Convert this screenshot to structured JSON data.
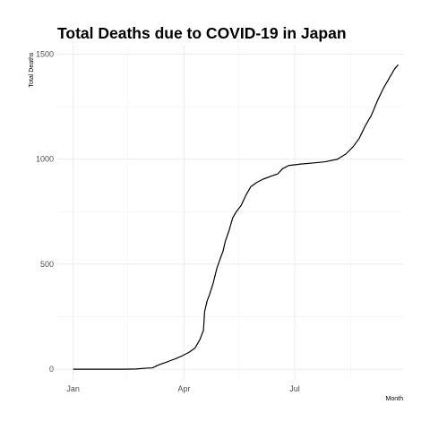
{
  "chart_data": {
    "type": "line",
    "title": "Total Deaths due to COVID-19 in Japan",
    "xlabel": "Month",
    "ylabel": "Total Deaths",
    "x_ticks": [
      "Jan",
      "Apr",
      "Jul"
    ],
    "y_ticks": [
      0,
      500,
      1000,
      1500
    ],
    "ylim": [
      -55,
      1545
    ],
    "xlim": [
      "2019-12-19",
      "2020-09-28"
    ],
    "grid": true,
    "series": [
      {
        "line_color": "#000000",
        "points": [
          [
            "2020-01-01",
            0
          ],
          [
            "2020-02-13",
            0
          ],
          [
            "2020-02-22",
            1
          ],
          [
            "2020-03-01",
            5
          ],
          [
            "2020-03-06",
            6
          ],
          [
            "2020-03-11",
            20
          ],
          [
            "2020-03-16",
            30
          ],
          [
            "2020-03-21",
            41
          ],
          [
            "2020-03-26",
            52
          ],
          [
            "2020-03-31",
            65
          ],
          [
            "2020-04-05",
            80
          ],
          [
            "2020-04-10",
            100
          ],
          [
            "2020-04-14",
            140
          ],
          [
            "2020-04-17",
            185
          ],
          [
            "2020-04-18",
            275
          ],
          [
            "2020-04-20",
            325
          ],
          [
            "2020-04-22",
            355
          ],
          [
            "2020-04-25",
            410
          ],
          [
            "2020-04-28",
            480
          ],
          [
            "2020-05-01",
            530
          ],
          [
            "2020-05-03",
            560
          ],
          [
            "2020-05-05",
            610
          ],
          [
            "2020-05-08",
            660
          ],
          [
            "2020-05-11",
            720
          ],
          [
            "2020-05-14",
            750
          ],
          [
            "2020-05-18",
            780
          ],
          [
            "2020-05-22",
            830
          ],
          [
            "2020-05-26",
            870
          ],
          [
            "2020-05-31",
            890
          ],
          [
            "2020-06-05",
            905
          ],
          [
            "2020-06-12",
            920
          ],
          [
            "2020-06-17",
            930
          ],
          [
            "2020-06-21",
            955
          ],
          [
            "2020-06-26",
            970
          ],
          [
            "2020-07-06",
            977
          ],
          [
            "2020-07-16",
            982
          ],
          [
            "2020-07-26",
            988
          ],
          [
            "2020-08-05",
            1000
          ],
          [
            "2020-08-12",
            1025
          ],
          [
            "2020-08-18",
            1060
          ],
          [
            "2020-08-23",
            1100
          ],
          [
            "2020-08-28",
            1160
          ],
          [
            "2020-09-02",
            1210
          ],
          [
            "2020-09-07",
            1280
          ],
          [
            "2020-09-12",
            1340
          ],
          [
            "2020-09-17",
            1390
          ],
          [
            "2020-09-21",
            1430
          ],
          [
            "2020-09-24",
            1450
          ]
        ]
      }
    ]
  }
}
